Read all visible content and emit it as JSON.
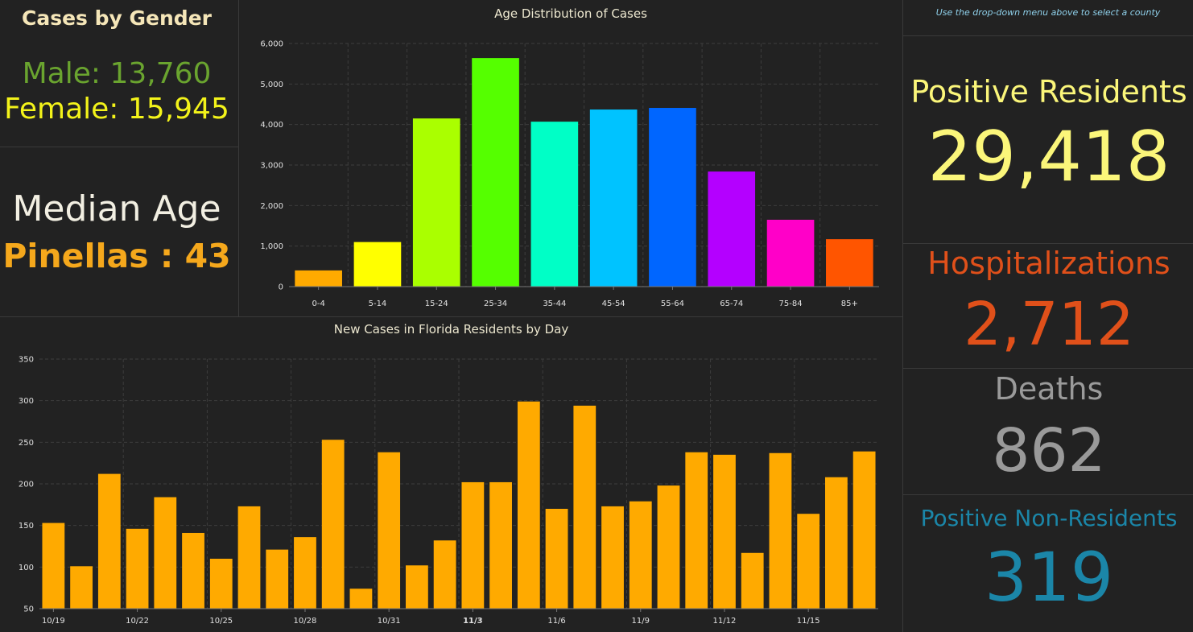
{
  "gender": {
    "title": "Cases by Gender",
    "male_label": "Male:",
    "male_value": "13,760",
    "female_label": "Female:",
    "female_value": "15,945",
    "male_color": "#6aa42f",
    "female_color": "#f3f31a"
  },
  "median": {
    "label": "Median Age",
    "county": "Pinellas",
    "separator": ":",
    "age": "43"
  },
  "age_chart": {
    "title": "Age Distribution of Cases"
  },
  "daily_chart": {
    "title": "New Cases in Florida Residents by Day"
  },
  "stats": {
    "hint": "Use the drop-down menu above to select a county",
    "positive_residents_label": "Positive Residents",
    "positive_residents_value": "29,418",
    "hospitalizations_label": "Hospitalizations",
    "hospitalizations_value": "2,712",
    "deaths_label": "Deaths",
    "deaths_value": "862",
    "non_residents_label": "Positive Non-Residents",
    "non_residents_value": "319",
    "colors": {
      "positive": "#fbf67a",
      "hospitalizations": "#e0501a",
      "deaths": "#9a9a9a",
      "non_residents": "#1b86a8"
    }
  },
  "chart_data": [
    {
      "type": "bar",
      "title": "Age Distribution of Cases",
      "categories": [
        "0-4",
        "5-14",
        "15-24",
        "25-34",
        "35-44",
        "45-54",
        "55-64",
        "65-74",
        "75-84",
        "85+"
      ],
      "values": [
        400,
        1100,
        4150,
        5640,
        4070,
        4370,
        4410,
        2840,
        1650,
        1170
      ],
      "colors": [
        "#ffaa00",
        "#ffff00",
        "#aaff00",
        "#55ff00",
        "#00ffc6",
        "#00c3ff",
        "#0066ff",
        "#b400ff",
        "#ff00c8",
        "#ff5500"
      ],
      "ylim": [
        0,
        6000
      ],
      "yticks": [
        "0",
        "1,000",
        "2,000",
        "3,000",
        "4,000",
        "5,000",
        "6,000"
      ],
      "grid": true
    },
    {
      "type": "bar",
      "title": "New Cases in Florida Residents by Day",
      "categories": [
        "10/19",
        "10/20",
        "10/21",
        "10/22",
        "10/23",
        "10/24",
        "10/25",
        "10/26",
        "10/27",
        "10/28",
        "10/29",
        "10/30",
        "10/31",
        "11/1",
        "11/2",
        "11/3",
        "11/4",
        "11/5",
        "11/6",
        "11/7",
        "11/8",
        "11/9",
        "11/10",
        "11/11",
        "11/12",
        "11/13",
        "11/14",
        "11/15",
        "11/16",
        "11/17"
      ],
      "values": [
        153,
        101,
        212,
        146,
        184,
        141,
        110,
        173,
        121,
        136,
        253,
        74,
        238,
        102,
        132,
        202,
        202,
        299,
        170,
        294,
        173,
        179,
        198,
        238,
        235,
        117,
        237,
        164,
        208,
        239
      ],
      "tick_labels": [
        "10/19",
        "10/22",
        "10/25",
        "10/28",
        "10/31",
        "11/3",
        "11/6",
        "11/9",
        "11/12",
        "11/15"
      ],
      "bold_tick": "11/3",
      "color": "#ffaa00",
      "ylim": [
        50,
        350
      ],
      "yticks": [
        "50",
        "100",
        "150",
        "200",
        "250",
        "300",
        "350"
      ],
      "grid": true
    }
  ]
}
